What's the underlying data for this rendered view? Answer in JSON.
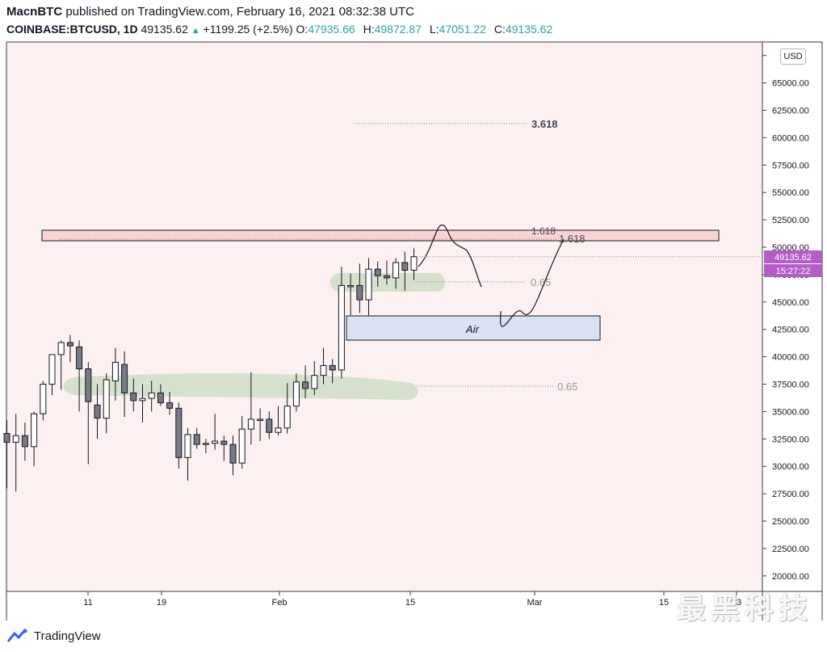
{
  "header": {
    "author": "MacnBTC",
    "published_text": "published on TradingView.com, February 16, 2021 08:32:38 UTC",
    "symbol": "COINBASE:BTCUSD, 1D",
    "last": "49135.62",
    "change": "+1199.25 (+2.5%)",
    "o_label": "O:",
    "o_value": "47935.66",
    "h_label": "H:",
    "h_value": "49872.87",
    "l_label": "L:",
    "l_value": "47051.22",
    "c_label": "C:",
    "c_value": "49135.62"
  },
  "currency_badge": "USD",
  "footer": {
    "brand": "TradingView"
  },
  "watermark": "最黑科技",
  "colors": {
    "background": "#fdf0f0",
    "up_fill": "#ffffff",
    "down_fill": "#787b86",
    "candle_border": "#131722",
    "resistance_zone": "#fad4d4",
    "support_zone": "#c8dcc0",
    "air_box": "#d9e1f2",
    "price_label": "#b45cc9",
    "accent_green": "#26a69a"
  },
  "chart_data": {
    "type": "candlestick",
    "y_ticks": [
      "20000.00",
      "22500.00",
      "25000.00",
      "27500.00",
      "30000.00",
      "32500.00",
      "35000.00",
      "37500.00",
      "40000.00",
      "42500.00",
      "45000.00",
      "47500.00",
      "50000.00",
      "52500.00",
      "55000.00",
      "57500.00",
      "60000.00",
      "62500.00",
      "65000.00"
    ],
    "x_ticks": [
      "11",
      "19",
      "Feb",
      "15",
      "Mar",
      "15",
      "23"
    ],
    "price_label": "49135.62",
    "countdown_label": "15:27:22",
    "fib_labels": [
      {
        "text": "3.618",
        "price": 61300
      },
      {
        "text": "1.618",
        "price": 51500
      },
      {
        "text": "1.618",
        "price": 50700
      },
      {
        "text": "0.65",
        "price": 47400
      },
      {
        "text": "0.65",
        "price": 37500
      }
    ],
    "air_label": "Air",
    "candles": [
      {
        "o": 33000,
        "h": 34200,
        "l": 28000,
        "c": 32200
      },
      {
        "o": 32200,
        "h": 34800,
        "l": 27700,
        "c": 32800
      },
      {
        "o": 32800,
        "h": 34000,
        "l": 30500,
        "c": 31800
      },
      {
        "o": 31800,
        "h": 35000,
        "l": 30000,
        "c": 34800
      },
      {
        "o": 34800,
        "h": 37800,
        "l": 34200,
        "c": 37500
      },
      {
        "o": 37500,
        "h": 40000,
        "l": 36500,
        "c": 40200
      },
      {
        "o": 40200,
        "h": 41500,
        "l": 37000,
        "c": 41300
      },
      {
        "o": 41300,
        "h": 42000,
        "l": 39500,
        "c": 41000
      },
      {
        "o": 40900,
        "h": 41500,
        "l": 35000,
        "c": 38900
      },
      {
        "o": 38900,
        "h": 39500,
        "l": 30200,
        "c": 35900
      },
      {
        "o": 35600,
        "h": 37500,
        "l": 32500,
        "c": 34400
      },
      {
        "o": 34400,
        "h": 38500,
        "l": 33000,
        "c": 37900
      },
      {
        "o": 37800,
        "h": 40800,
        "l": 36000,
        "c": 39500
      },
      {
        "o": 39300,
        "h": 40500,
        "l": 34500,
        "c": 36700
      },
      {
        "o": 36700,
        "h": 38000,
        "l": 35000,
        "c": 36000
      },
      {
        "o": 36000,
        "h": 37500,
        "l": 34000,
        "c": 36200
      },
      {
        "o": 36200,
        "h": 37800,
        "l": 35000,
        "c": 36700
      },
      {
        "o": 36700,
        "h": 37500,
        "l": 35500,
        "c": 35800
      },
      {
        "o": 35800,
        "h": 36800,
        "l": 34700,
        "c": 35300
      },
      {
        "o": 35300,
        "h": 35800,
        "l": 29800,
        "c": 30800
      },
      {
        "o": 30800,
        "h": 33500,
        "l": 28700,
        "c": 32900
      },
      {
        "o": 32900,
        "h": 33500,
        "l": 31600,
        "c": 32000
      },
      {
        "o": 32000,
        "h": 32500,
        "l": 31200,
        "c": 32100
      },
      {
        "o": 32100,
        "h": 34800,
        "l": 31500,
        "c": 32300
      },
      {
        "o": 32300,
        "h": 32800,
        "l": 30500,
        "c": 32000
      },
      {
        "o": 32000,
        "h": 32800,
        "l": 29200,
        "c": 30300
      },
      {
        "o": 30300,
        "h": 34600,
        "l": 29800,
        "c": 33400
      },
      {
        "o": 33400,
        "h": 38600,
        "l": 32000,
        "c": 34300
      },
      {
        "o": 34300,
        "h": 35300,
        "l": 32300,
        "c": 34300
      },
      {
        "o": 34300,
        "h": 35000,
        "l": 32500,
        "c": 33100
      },
      {
        "o": 33100,
        "h": 35500,
        "l": 32800,
        "c": 33500
      },
      {
        "o": 33500,
        "h": 37600,
        "l": 33000,
        "c": 35500
      },
      {
        "o": 35500,
        "h": 38500,
        "l": 35000,
        "c": 37700
      },
      {
        "o": 37700,
        "h": 39200,
        "l": 36200,
        "c": 37100
      },
      {
        "o": 37100,
        "h": 39600,
        "l": 36500,
        "c": 38300
      },
      {
        "o": 38300,
        "h": 40800,
        "l": 37500,
        "c": 39200
      },
      {
        "o": 39200,
        "h": 39800,
        "l": 37600,
        "c": 38800
      },
      {
        "o": 38800,
        "h": 48200,
        "l": 38000,
        "c": 46500
      },
      {
        "o": 46500,
        "h": 47600,
        "l": 43800,
        "c": 46500
      },
      {
        "o": 46500,
        "h": 48500,
        "l": 44000,
        "c": 45200
      },
      {
        "o": 45200,
        "h": 49000,
        "l": 43800,
        "c": 48000
      },
      {
        "o": 48000,
        "h": 48700,
        "l": 46400,
        "c": 47400
      },
      {
        "o": 47400,
        "h": 48800,
        "l": 46600,
        "c": 47200
      },
      {
        "o": 47200,
        "h": 49000,
        "l": 46200,
        "c": 48600
      },
      {
        "o": 48600,
        "h": 49600,
        "l": 46000,
        "c": 47900
      },
      {
        "o": 47900,
        "h": 49900,
        "l": 47000,
        "c": 49136
      }
    ]
  }
}
